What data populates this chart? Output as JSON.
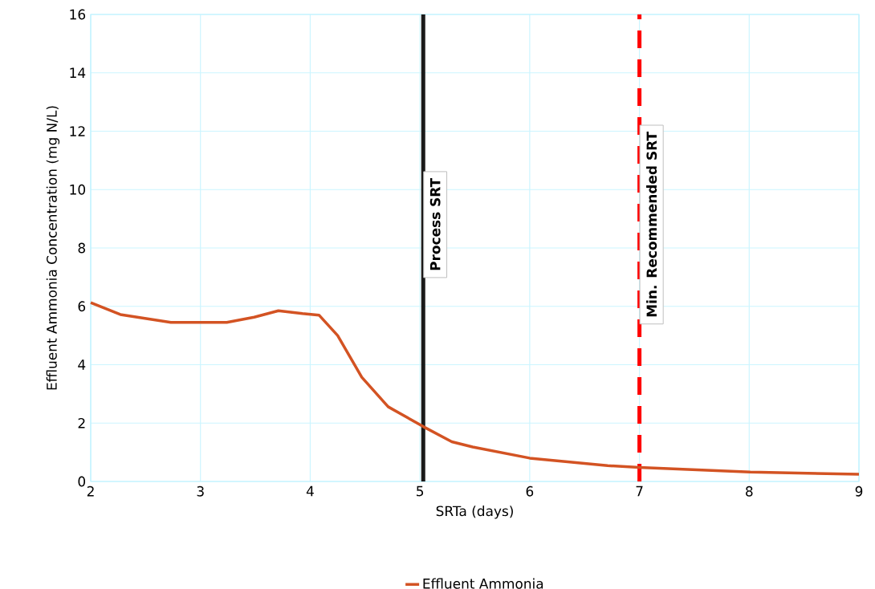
{
  "chart_data": {
    "type": "line",
    "xlabel": "SRTa (days)",
    "ylabel": "Effluent Ammonia Concentration (mg N/L)",
    "xlim": [
      2,
      9
    ],
    "xticks": [
      2,
      3,
      4,
      5,
      6,
      7,
      8,
      9
    ],
    "ylim": [
      0,
      16
    ],
    "yticks": [
      0,
      2,
      4,
      6,
      8,
      10,
      12,
      14,
      16
    ],
    "grid": true,
    "legend": "bottom",
    "marker": "none",
    "series": [
      {
        "name": "Effluent Ammonia",
        "color": "#d35323",
        "x": [
          2,
          2.27,
          2.73,
          3.24,
          3.49,
          3.71,
          3.93,
          4.08,
          4.25,
          4.47,
          4.71,
          5.03,
          5.29,
          5.48,
          6.0,
          6.71,
          7.0,
          8.01,
          9.0
        ],
        "values": [
          6.13,
          5.72,
          5.45,
          5.45,
          5.63,
          5.85,
          5.75,
          5.7,
          5.0,
          3.57,
          2.56,
          1.88,
          1.36,
          1.18,
          0.8,
          0.54,
          0.48,
          0.32,
          0.25
        ]
      }
    ],
    "ref_lines": [
      {
        "axis": "x",
        "value": 5.03,
        "label": "Process SRT",
        "color": "#1a1a1a",
        "line_style": "solid"
      },
      {
        "axis": "x",
        "value": 7,
        "label": "Min. Recommended SRT",
        "color": "#ff0000",
        "line_style": "dashed"
      }
    ]
  }
}
